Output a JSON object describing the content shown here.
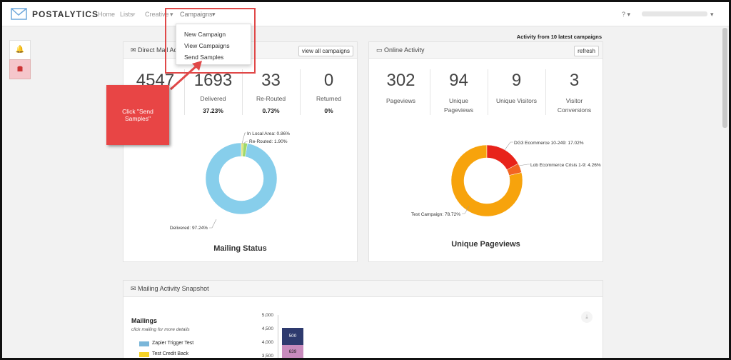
{
  "nav": {
    "brand": "POSTALYTICS",
    "items": [
      "Home",
      "Lists",
      "Creative",
      "Campaigns"
    ]
  },
  "dropdown": [
    "New Campaign",
    "View Campaigns",
    "Send Samples"
  ],
  "activity_note": "Activity from 10 latest campaigns",
  "direct_mail": {
    "title": "Direct Mail Activity",
    "button": "view all campaigns",
    "stats": [
      {
        "value": 4547
      },
      {
        "value": 1693,
        "label": "Delivered",
        "percent": "37.23%"
      },
      {
        "value": 33,
        "label": "Re-Routed",
        "percent": "0.73%"
      },
      {
        "value": 0,
        "label": "Returned",
        "percent": "0%"
      }
    ],
    "chart": {
      "title": "Mailing Status",
      "segments": [
        {
          "label": "In Local Area: 0.86%",
          "value": 0.86,
          "color": "#e3e36a"
        },
        {
          "label": "Re-Routed: 1.90%",
          "value": 1.9,
          "color": "#9fd86b"
        },
        {
          "label": "Delivered: 97.24%",
          "value": 97.24,
          "color": "#87ceeb"
        }
      ]
    }
  },
  "online": {
    "title": "Online Activity",
    "button": "refresh",
    "stats": [
      {
        "value": 302,
        "label": "Pageviews"
      },
      {
        "value": 94,
        "label": "Unique Pageviews"
      },
      {
        "value": 9,
        "label": "Unique Visitors"
      },
      {
        "value": 3,
        "label": "Visitor Conversions"
      }
    ],
    "chart": {
      "title": "Unique Pageviews",
      "segments": [
        {
          "label": "DG3 Ecommerce 10-249: 17.02%",
          "value": 17.02,
          "color": "#e8231a"
        },
        {
          "label": "Lob Ecommerce Crisis 1-9: 4.26%",
          "value": 4.26,
          "color": "#f26522"
        },
        {
          "label": "Test Campaign: 78.72%",
          "value": 78.72,
          "color": "#f7a30c"
        }
      ]
    }
  },
  "callout": "Click \"Send Samples\"",
  "snapshot": {
    "title": "Mailing Activity Snapshot",
    "heading": "Mailings",
    "hint": "click mailing for more details",
    "legend": [
      "Zapier Trigger Test",
      "Test Credit Back"
    ],
    "yticks": [
      "5,000",
      "4,500",
      "4,000",
      "3,500"
    ],
    "bar_labels": [
      "500",
      "639"
    ]
  }
}
